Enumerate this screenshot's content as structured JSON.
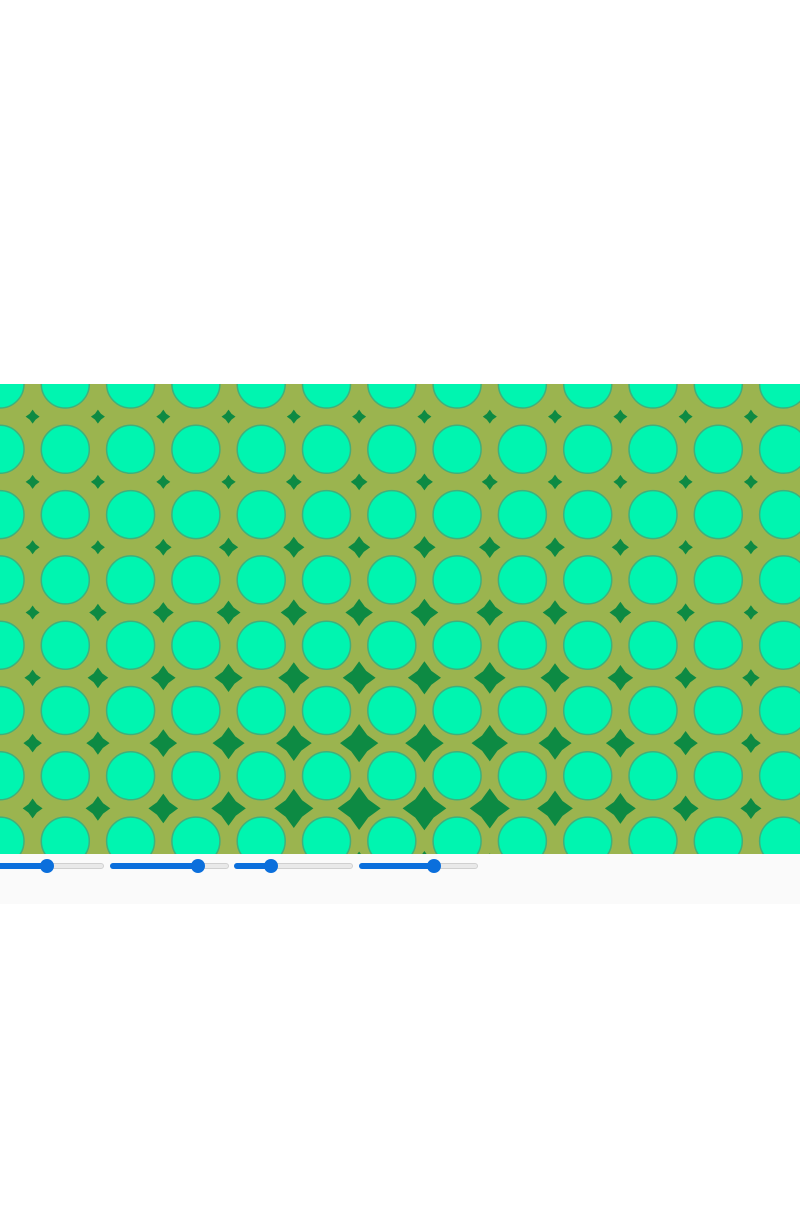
{
  "colors": {
    "page_background": "#ffffff",
    "pattern_background": "#9bb44f",
    "circle_fill": "#00f5b0",
    "circle_stroke": "#3fb07c",
    "star_fill": "#0d8a43",
    "slider_accent": "#0b6fdc",
    "slider_track": "#e9e9e9",
    "controls_background": "#fafafa"
  },
  "pattern": {
    "shape_primary": "circle",
    "shape_secondary": "four-point-star",
    "arrangement": "square-grid"
  },
  "sliders": [
    {
      "name": "slider-1",
      "value_fraction": 0.48
    },
    {
      "name": "slider-2",
      "value_fraction": 0.74
    },
    {
      "name": "slider-3",
      "value_fraction": 0.31
    },
    {
      "name": "slider-4",
      "value_fraction": 0.63
    }
  ]
}
